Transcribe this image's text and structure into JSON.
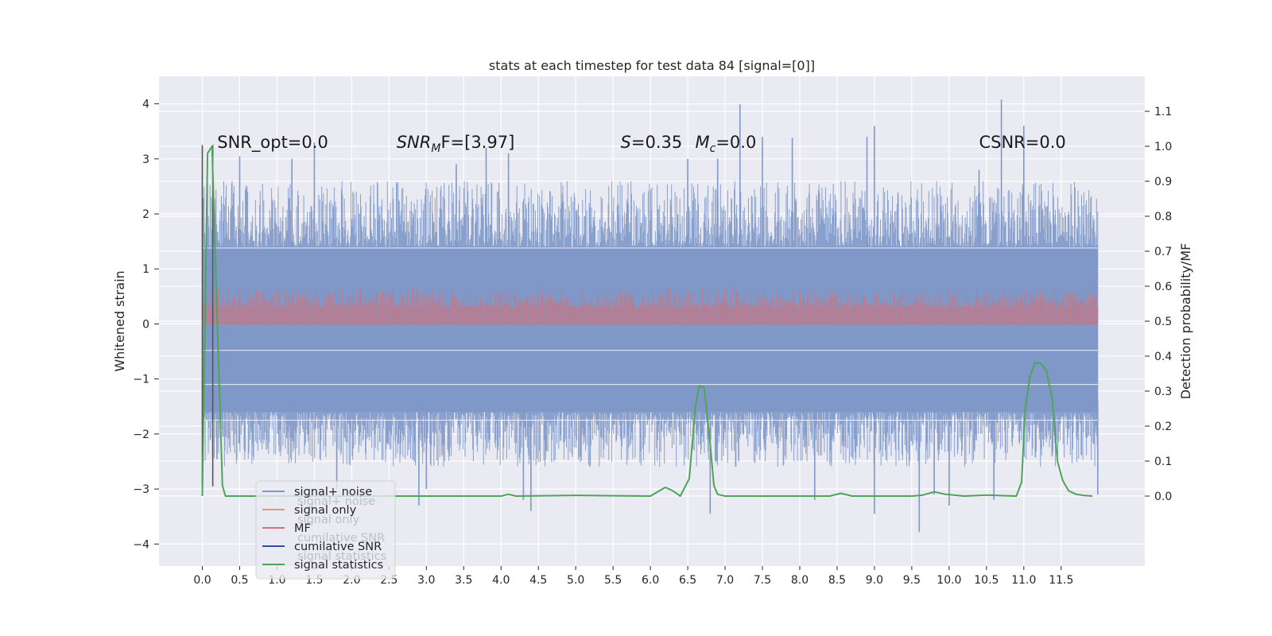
{
  "chart_data": {
    "type": "line",
    "title": "stats at each timestep for test data 84 [signal=[0]]",
    "ylabel_left": "Whitened strain",
    "ylabel_right": "Detection probability/MF",
    "xlim": [
      -0.58,
      12.62
    ],
    "ylim_left": [
      -4.4,
      4.5
    ],
    "ylim_right": [
      -0.2,
      1.2
    ],
    "x_ticks": [
      0.0,
      0.5,
      1.0,
      1.5,
      2.0,
      2.5,
      3.0,
      3.5,
      4.0,
      4.5,
      5.0,
      5.5,
      6.0,
      6.5,
      7.0,
      7.5,
      8.0,
      8.5,
      9.0,
      9.5,
      10.0,
      10.5,
      11.0,
      11.5
    ],
    "x_tick_labels": [
      "0.0",
      "0.5",
      "1.0",
      "1.5",
      "2.0",
      "2.5",
      "3.0",
      "3.5",
      "4.0",
      "4.5",
      "5.0",
      "5.5",
      "6.0",
      "6.5",
      "7.0",
      "7.5",
      "8.0",
      "8.5",
      "9.0",
      "9.5",
      "10.0",
      "10.5",
      "11.0",
      "11.5"
    ],
    "y_left_ticks": [
      -4,
      -3,
      -2,
      -1,
      0,
      1,
      2,
      3,
      4
    ],
    "y_left_tick_labels": [
      "−4",
      "−3",
      "−2",
      "−1",
      "0",
      "1",
      "2",
      "3",
      "4"
    ],
    "y_right_ticks": [
      0.0,
      0.1,
      0.2,
      0.3,
      0.4,
      0.5,
      0.6,
      0.7,
      0.8,
      0.9,
      1.0,
      1.1
    ],
    "y_right_tick_labels": [
      "0.0",
      "0.1",
      "0.2",
      "0.3",
      "0.4",
      "0.5",
      "0.6",
      "0.7",
      "0.8",
      "0.9",
      "1.0",
      "1.1"
    ],
    "grid": true,
    "legend_position": "lower-left",
    "legend": [
      {
        "label": "signal+ noise",
        "color": "#7f98c8"
      },
      {
        "label": "signal only",
        "color": "#dd9a7a"
      },
      {
        "label": "MF",
        "color": "#d0727a"
      },
      {
        "label": "cumilative SNR",
        "color": "#2f4f9f"
      },
      {
        "label": "signal statistics",
        "color": "#4ea459"
      }
    ],
    "ghost_legend": [
      "signal+ noise",
      "signal only",
      "cumilative SNR",
      "signal statistics"
    ],
    "annotations": [
      {
        "text": "SNR_opt=0.0",
        "x": 0.2,
        "y": 3.3
      },
      {
        "pre": "",
        "main": "SNR",
        "sub": "M",
        "post": "F=[3.97]",
        "italic": true,
        "x": 2.6,
        "y": 3.3
      },
      {
        "pre": "",
        "main": "S",
        "sub": "",
        "post": "=0.35",
        "italic": true,
        "x": 5.6,
        "y": 3.3
      },
      {
        "pre": "",
        "main": "M",
        "sub": "c",
        "post": "=0.0",
        "italic": true,
        "x": 6.6,
        "y": 3.3
      },
      {
        "text": "CSNR=0.0",
        "x": 10.4,
        "y": 3.3
      }
    ],
    "series": [
      {
        "name": "signal+ noise",
        "color": "#7f98c8",
        "axis": "left",
        "x_range": [
          0.0,
          11.99
        ],
        "upper_band": [
          1.4,
          2.6
        ],
        "lower_band": [
          -1.6,
          -2.6
        ],
        "upper_spikes": [
          [
            7.2,
            3.99
          ],
          [
            10.7,
            4.08
          ],
          [
            9.0,
            3.6
          ],
          [
            8.9,
            3.4
          ],
          [
            1.5,
            3.3
          ],
          [
            3.8,
            3.2
          ],
          [
            11.0,
            3.6
          ],
          [
            7.5,
            3.4
          ],
          [
            7.9,
            3.38
          ],
          [
            0.5,
            3.05
          ],
          [
            1.2,
            3.0
          ],
          [
            4.1,
            3.1
          ],
          [
            10.4,
            2.8
          ],
          [
            6.9,
            3.0
          ],
          [
            6.5,
            3.0
          ],
          [
            3.4,
            2.9
          ]
        ],
        "lower_spikes": [
          [
            9.6,
            -3.78
          ],
          [
            4.4,
            -3.4
          ],
          [
            6.8,
            -3.45
          ],
          [
            2.9,
            -3.3
          ],
          [
            10.0,
            -3.3
          ],
          [
            9.0,
            -3.45
          ],
          [
            8.2,
            -3.2
          ],
          [
            10.6,
            -3.2
          ],
          [
            11.99,
            -3.1
          ],
          [
            9.8,
            -3.1
          ],
          [
            4.3,
            -3.2
          ],
          [
            1.8,
            -3.0
          ],
          [
            3.0,
            -3.0
          ]
        ]
      },
      {
        "name": "MF",
        "color": "#d0727a",
        "axis": "left",
        "x_range": [
          0.0,
          11.99
        ],
        "base": 0.0,
        "level": [
          0.3,
          0.65
        ]
      },
      {
        "name": "signal statistics",
        "color": "#4ea459",
        "axis": "right",
        "points": [
          [
            0.0,
            0.0
          ],
          [
            0.07,
            0.98
          ],
          [
            0.13,
            1.0
          ],
          [
            0.2,
            0.5
          ],
          [
            0.27,
            0.03
          ],
          [
            0.31,
            0.0
          ],
          [
            1.0,
            0.0
          ],
          [
            2.0,
            0.0
          ],
          [
            3.0,
            0.0
          ],
          [
            4.0,
            0.0
          ],
          [
            4.1,
            0.005
          ],
          [
            4.2,
            0.0
          ],
          [
            5.0,
            0.002
          ],
          [
            6.0,
            0.0
          ],
          [
            6.2,
            0.025
          ],
          [
            6.3,
            0.015
          ],
          [
            6.4,
            0.0
          ],
          [
            6.52,
            0.05
          ],
          [
            6.6,
            0.25
          ],
          [
            6.65,
            0.315
          ],
          [
            6.72,
            0.31
          ],
          [
            6.8,
            0.15
          ],
          [
            6.85,
            0.03
          ],
          [
            6.9,
            0.005
          ],
          [
            7.0,
            0.0
          ],
          [
            8.0,
            0.0
          ],
          [
            8.4,
            0.0
          ],
          [
            8.55,
            0.008
          ],
          [
            8.7,
            0.0
          ],
          [
            9.0,
            0.0
          ],
          [
            9.5,
            0.0
          ],
          [
            9.65,
            0.003
          ],
          [
            9.8,
            0.012
          ],
          [
            9.95,
            0.005
          ],
          [
            10.2,
            0.0
          ],
          [
            10.5,
            0.003
          ],
          [
            10.9,
            0.0
          ],
          [
            10.97,
            0.04
          ],
          [
            11.02,
            0.25
          ],
          [
            11.08,
            0.34
          ],
          [
            11.15,
            0.38
          ],
          [
            11.22,
            0.38
          ],
          [
            11.3,
            0.36
          ],
          [
            11.38,
            0.28
          ],
          [
            11.45,
            0.1
          ],
          [
            11.52,
            0.045
          ],
          [
            11.6,
            0.015
          ],
          [
            11.7,
            0.005
          ],
          [
            11.8,
            0.002
          ],
          [
            11.92,
            0.0
          ]
        ]
      },
      {
        "name": "vertical markers",
        "color": "#555555",
        "axis": "left",
        "lines": [
          [
            0.0,
            -2.95,
            3.25
          ],
          [
            0.14,
            -2.95,
            3.25
          ]
        ]
      }
    ]
  }
}
